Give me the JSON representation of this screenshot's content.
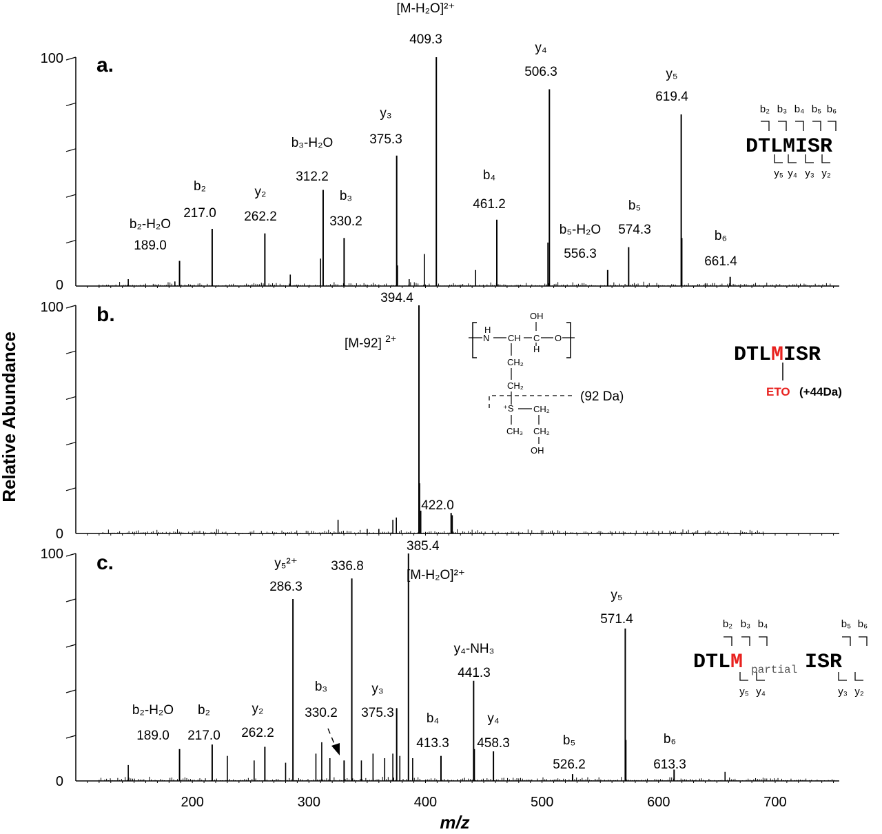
{
  "axis": {
    "ylabel": "Relative Abundance",
    "xlabel": "m/z",
    "xlim": [
      100,
      755
    ],
    "xticks": [
      200,
      300,
      400,
      500,
      600,
      700
    ],
    "xtick_labels": [
      "200",
      "300",
      "400",
      "500",
      "600",
      "700"
    ],
    "ylim": [
      0,
      100
    ],
    "ytick_labels": [
      "0",
      "100"
    ]
  },
  "chart_data": [
    {
      "type": "bar",
      "panel_label": "a.",
      "peaks": [
        {
          "mz": 189.0,
          "intensity": 11,
          "labels": [
            "b₂-H₂O",
            "189.0"
          ]
        },
        {
          "mz": 217.0,
          "intensity": 25,
          "labels": [
            "b₂",
            "217.0"
          ]
        },
        {
          "mz": 262.2,
          "intensity": 23,
          "labels": [
            "y₂",
            "262.2"
          ]
        },
        {
          "mz": 312.2,
          "intensity": 42,
          "labels": [
            "b₃-H₂O",
            "312.2"
          ]
        },
        {
          "mz": 330.2,
          "intensity": 21,
          "labels": [
            "b₃",
            "330.2"
          ]
        },
        {
          "mz": 375.3,
          "intensity": 57,
          "labels": [
            "y₃",
            "375.3"
          ]
        },
        {
          "mz": 409.3,
          "intensity": 100,
          "labels": [
            "[M-H₂O]²⁺",
            "409.3"
          ]
        },
        {
          "mz": 461.2,
          "intensity": 29,
          "labels": [
            "b₄",
            "461.2"
          ]
        },
        {
          "mz": 506.3,
          "intensity": 86,
          "labels": [
            "y₄",
            "506.3"
          ]
        },
        {
          "mz": 556.3,
          "intensity": 7,
          "labels": [
            "b₅-H₂O",
            "556.3"
          ]
        },
        {
          "mz": 574.3,
          "intensity": 17,
          "labels": [
            "b₅",
            "574.3"
          ]
        },
        {
          "mz": 619.4,
          "intensity": 75,
          "labels": [
            "y₅",
            "619.4"
          ]
        },
        {
          "mz": 661.4,
          "intensity": 4,
          "labels": [
            "b₆",
            "661.4"
          ]
        }
      ],
      "minor_peaks": [
        {
          "mz": 145,
          "intensity": 3
        },
        {
          "mz": 185,
          "intensity": 2
        },
        {
          "mz": 284,
          "intensity": 5
        },
        {
          "mz": 310,
          "intensity": 12
        },
        {
          "mz": 376,
          "intensity": 9
        },
        {
          "mz": 386,
          "intensity": 3
        },
        {
          "mz": 399,
          "intensity": 14
        },
        {
          "mz": 443,
          "intensity": 7
        },
        {
          "mz": 505,
          "intensity": 19
        },
        {
          "mz": 620,
          "intensity": 21
        },
        {
          "mz": 640,
          "intensity": 1
        }
      ],
      "sequence": {
        "text": "DTLMISR",
        "b_ions": [
          "b₂",
          "b₃",
          "b₄",
          "b₅",
          "b₆"
        ],
        "y_ions": [
          "y₅",
          "y₄",
          "y₃",
          "y₂"
        ]
      }
    },
    {
      "type": "bar",
      "panel_label": "b.",
      "peaks": [
        {
          "mz": 394.4,
          "intensity": 100,
          "labels": [
            "394.4"
          ]
        },
        {
          "mz": 422.0,
          "intensity": 9,
          "labels": [
            "422.0"
          ]
        }
      ],
      "minor_peaks": [
        {
          "mz": 325,
          "intensity": 6
        },
        {
          "mz": 372,
          "intensity": 6
        },
        {
          "mz": 375,
          "intensity": 7
        },
        {
          "mz": 395,
          "intensity": 22
        },
        {
          "mz": 396,
          "intensity": 10
        },
        {
          "mz": 423,
          "intensity": 8
        },
        {
          "mz": 350,
          "intensity": 2
        },
        {
          "mz": 360,
          "intensity": 2
        }
      ],
      "annotations": {
        "loss_label": "[M-92]",
        "loss_charge": "2+",
        "neutral_loss": "(92 Da)"
      },
      "structure": {
        "H_left": "H",
        "N": "N",
        "CH": "CH",
        "C": "C",
        "O": "O",
        "OH_top": "OH",
        "H_bottom": "H",
        "CH2_1": "CH₂",
        "CH2_2": "CH₂",
        "S": "⁺S",
        "CH2_3": "CH₂",
        "CH3": "CH₃",
        "CH2_4": "CH₂",
        "OH_end": "OH"
      },
      "sequence": {
        "pre": "DTL",
        "mod": "M",
        "post": "ISR",
        "mod_name": "ETO",
        "mod_mass": "(+44Da)"
      }
    },
    {
      "type": "bar",
      "panel_label": "c.",
      "peaks": [
        {
          "mz": 189.0,
          "intensity": 14,
          "labels": [
            "b₂-H₂O",
            "189.0"
          ]
        },
        {
          "mz": 217.0,
          "intensity": 16,
          "labels": [
            "b₂",
            "217.0"
          ]
        },
        {
          "mz": 262.2,
          "intensity": 15,
          "labels": [
            "y₂",
            "262.2"
          ]
        },
        {
          "mz": 286.3,
          "intensity": 80,
          "labels": [
            "y₅²⁺",
            "286.3"
          ]
        },
        {
          "mz": 330.2,
          "intensity": 9,
          "labels": [
            "b₃",
            "330.2"
          ]
        },
        {
          "mz": 336.8,
          "intensity": 89,
          "labels": [
            "336.8"
          ]
        },
        {
          "mz": 375.3,
          "intensity": 32,
          "labels": [
            "y₃",
            "375.3"
          ]
        },
        {
          "mz": 385.4,
          "intensity": 100,
          "labels": [
            "385.4",
            "[M-H₂O]²⁺"
          ]
        },
        {
          "mz": 413.3,
          "intensity": 11,
          "labels": [
            "b₄",
            "413.3"
          ]
        },
        {
          "mz": 441.3,
          "intensity": 44,
          "labels": [
            "y₄-NH₃",
            "441.3"
          ]
        },
        {
          "mz": 458.3,
          "intensity": 13,
          "labels": [
            "y₄",
            "458.3"
          ]
        },
        {
          "mz": 526.2,
          "intensity": 3,
          "labels": [
            "b₅",
            "526.2"
          ]
        },
        {
          "mz": 571.4,
          "intensity": 67,
          "labels": [
            "y₅",
            "571.4"
          ]
        },
        {
          "mz": 613.3,
          "intensity": 5,
          "labels": [
            "b₆",
            "613.3"
          ]
        }
      ],
      "minor_peaks": [
        {
          "mz": 145,
          "intensity": 7
        },
        {
          "mz": 230,
          "intensity": 11
        },
        {
          "mz": 253,
          "intensity": 9
        },
        {
          "mz": 280,
          "intensity": 8
        },
        {
          "mz": 306,
          "intensity": 12
        },
        {
          "mz": 311,
          "intensity": 17
        },
        {
          "mz": 318,
          "intensity": 10
        },
        {
          "mz": 345,
          "intensity": 9
        },
        {
          "mz": 355,
          "intensity": 12
        },
        {
          "mz": 365,
          "intensity": 10
        },
        {
          "mz": 372,
          "intensity": 12
        },
        {
          "mz": 378,
          "intensity": 11
        },
        {
          "mz": 389,
          "intensity": 10
        },
        {
          "mz": 442,
          "intensity": 14
        },
        {
          "mz": 572,
          "intensity": 18
        },
        {
          "mz": 657,
          "intensity": 4
        }
      ],
      "sequence": {
        "pre": "DTL",
        "mod": "M",
        "partial": "partial",
        "post": "ISR",
        "b_left": [
          "b₂",
          "b₃",
          "b₄"
        ],
        "b_right": [
          "b₅",
          "b₆"
        ],
        "y_left": [
          "y₅",
          "y₄"
        ],
        "y_right": [
          "y₃",
          "y₂"
        ]
      }
    }
  ],
  "colors": {
    "accent": "#e8211e",
    "ink": "#000000"
  }
}
